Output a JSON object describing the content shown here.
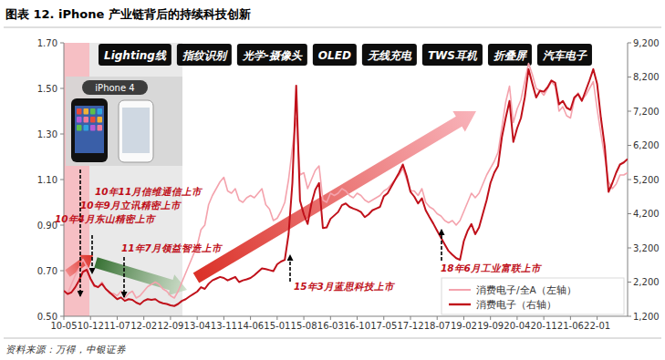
{
  "chart_data": {
    "type": "line",
    "title": "图表 12. iPhone 产业链背后的持续科技创新",
    "source": "资料来源：万得，中银证券",
    "iphone_label": "iPhone 4",
    "banners": [
      "Lighting线",
      "指纹识别",
      "光学-摄像头",
      "OLED",
      "无线充电",
      "TWS耳机",
      "折叠屏",
      "汽车电子"
    ],
    "annotations": [
      "10年11月信维通信上市",
      "10年9月立讯精密上市",
      "10年4月东山精密上市",
      "11年7月领益智造上市",
      "15年3月蓝思科技上市",
      "18年6月工业富联上市"
    ],
    "grid": false,
    "legend": "lower right",
    "categories": [
      "10-05",
      null,
      null,
      null,
      null,
      null,
      null,
      "10-12",
      null,
      null,
      null,
      null,
      null,
      null,
      "11-07",
      null,
      null,
      null,
      null,
      null,
      null,
      "12-02",
      null,
      null,
      null,
      null,
      null,
      null,
      "12-09",
      null,
      null,
      null,
      null,
      null,
      null,
      "13-04",
      null,
      null,
      null,
      null,
      null,
      null,
      "13-11",
      null,
      null,
      null,
      null,
      null,
      null,
      "14-06",
      null,
      null,
      null,
      null,
      null,
      null,
      "15-01",
      null,
      null,
      null,
      null,
      null,
      null,
      "15-08",
      null,
      null,
      null,
      null,
      null,
      null,
      "16-03",
      null,
      null,
      null,
      null,
      null,
      null,
      "16-10",
      null,
      null,
      null,
      null,
      null,
      null,
      "17-05",
      null,
      null,
      null,
      null,
      null,
      null,
      "17-12",
      null,
      null,
      null,
      null,
      null,
      null,
      "18-07",
      null,
      null,
      null,
      null,
      null,
      null,
      "19-02",
      null,
      null,
      null,
      null,
      null,
      null,
      "19-09",
      null,
      null,
      null,
      null,
      null,
      null,
      "20-04",
      null,
      null,
      null,
      null,
      null,
      null,
      "20-11",
      null,
      null,
      null,
      null,
      null,
      null,
      "21-06",
      null,
      null,
      null,
      null,
      null,
      null,
      "22-01",
      null,
      null,
      null,
      null,
      null,
      null,
      null,
      null
    ],
    "ylim": [
      0.5,
      1.7
    ],
    "yticks": [
      {
        "value": 0.5,
        "label": "0.50"
      },
      {
        "value": 0.7,
        "label": "0.70"
      },
      {
        "value": 0.9,
        "label": "0.90"
      },
      {
        "value": 1.1,
        "label": "1.10"
      },
      {
        "value": 1.3,
        "label": "1.30"
      },
      {
        "value": 1.5,
        "label": "1.50"
      },
      {
        "value": 1.7,
        "label": "1.70"
      }
    ],
    "y2lim": [
      1200,
      9200
    ],
    "y2ticks": [
      {
        "value": 1200,
        "label": "1,200"
      },
      {
        "value": 2200,
        "label": "2,200"
      },
      {
        "value": 3200,
        "label": "3,200"
      },
      {
        "value": 4200,
        "label": "4,200"
      },
      {
        "value": 5200,
        "label": "5,200"
      },
      {
        "value": 6200,
        "label": "6,200"
      },
      {
        "value": 7200,
        "label": "7,200"
      },
      {
        "value": 8200,
        "label": "8,200"
      },
      {
        "value": 9200,
        "label": "9,200"
      }
    ],
    "series": [
      {
        "name": "消费电子/全A（左轴）",
        "color": "#f4a3ad",
        "axis": "y",
        "values": [
          0.61,
          0.6,
          0.64,
          0.68,
          0.71,
          0.75,
          0.72,
          0.66,
          0.63,
          0.63,
          0.65,
          0.62,
          0.6,
          0.6,
          0.59,
          0.61,
          0.58,
          0.6,
          0.61,
          0.58,
          0.59,
          0.61,
          0.63,
          0.64,
          0.65,
          0.64,
          0.62,
          0.61,
          0.59,
          0.58,
          0.61,
          0.65,
          0.69,
          0.73,
          0.77,
          0.81,
          0.88,
          0.9,
          0.99,
          1.03,
          1.06,
          1.09,
          1.11,
          1.05,
          1.04,
          1.06,
          1.01,
          1.0,
          1.02,
          1.03,
          1.02,
          1.04,
          1.06,
          0.99,
          0.97,
          0.92,
          0.93,
          0.96,
          1.0,
          1.1,
          1.24,
          1.37,
          1.12,
          1.13,
          1.06,
          1.1,
          1.14,
          1.16,
          1.01,
          1.0,
          1.04,
          1.03,
          1.04,
          1.06,
          1.05,
          1.03,
          1.02,
          1.04,
          1.03,
          1.01,
          1.0,
          1.01,
          1.02,
          1.03,
          1.05,
          1.06,
          1.08,
          1.1,
          1.12,
          1.15,
          1.1,
          1.05,
          1.05,
          1.03,
          1.06,
          1.0,
          0.98,
          0.97,
          0.95,
          0.94,
          0.92,
          0.91,
          0.92,
          0.9,
          0.92,
          0.96,
          1.0,
          1.04,
          1.02,
          1.04,
          1.08,
          1.12,
          1.15,
          1.18,
          1.22,
          1.33,
          1.44,
          1.51,
          1.35,
          1.41,
          1.45,
          1.53,
          1.61,
          1.56,
          1.5,
          1.49,
          1.47,
          1.5,
          1.53,
          1.51,
          1.4,
          1.42,
          1.38,
          1.37,
          1.45,
          1.48,
          1.45,
          1.47,
          1.5,
          1.53,
          1.41,
          1.3,
          1.2,
          1.09,
          1.06,
          1.08,
          1.12,
          1.12,
          1.13
        ]
      },
      {
        "name": "消费电子（右轴）",
        "color": "#c0101a",
        "axis": "y2",
        "values": [
          1950,
          1850,
          1900,
          2050,
          2250,
          2500,
          2560,
          2300,
          2100,
          2050,
          2150,
          2000,
          1900,
          1800,
          1700,
          1750,
          1650,
          1700,
          1680,
          1600,
          1550,
          1650,
          1700,
          1680,
          1700,
          1620,
          1580,
          1560,
          1520,
          1500,
          1560,
          1650,
          1700,
          1780,
          1850,
          1920,
          2050,
          2000,
          2150,
          2250,
          2300,
          2350,
          2320,
          2250,
          2300,
          2350,
          2200,
          2250,
          2280,
          2320,
          2400,
          2500,
          2600,
          2580,
          2550,
          2520,
          2720,
          2800,
          2850,
          3600,
          5100,
          7950,
          4580,
          4180,
          3900,
          4500,
          4900,
          5100,
          3780,
          3800,
          4050,
          4150,
          4250,
          4450,
          4500,
          4400,
          4350,
          4310,
          4250,
          4100,
          4180,
          4300,
          4350,
          4400,
          4710,
          4800,
          5000,
          5200,
          5400,
          5640,
          5300,
          4840,
          4700,
          4500,
          4650,
          4300,
          4100,
          3910,
          3700,
          3500,
          3300,
          3110,
          3000,
          2900,
          2850,
          3400,
          3700,
          3900,
          3600,
          3800,
          4200,
          4600,
          5100,
          5400,
          5600,
          6440,
          7000,
          7500,
          6300,
          6700,
          7000,
          7600,
          8430,
          8000,
          7600,
          7800,
          7770,
          7900,
          8100,
          8030,
          7400,
          7500,
          7300,
          7240,
          7600,
          7700,
          7500,
          7800,
          8100,
          8430,
          8000,
          7000,
          6170,
          4840,
          5100,
          5400,
          5640,
          5700,
          5800
        ]
      }
    ]
  }
}
